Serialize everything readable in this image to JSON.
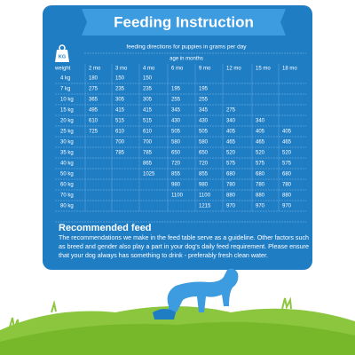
{
  "header": {
    "title": "Feeding Instruction",
    "subtitle": "feeding directions for puppies in grams per day",
    "age_label": "age in months",
    "icon_label": "KG"
  },
  "table": {
    "columns": [
      "weight",
      "2 mo",
      "3 mo",
      "4 mo",
      "6 mo",
      "9 mo",
      "12 mo",
      "15 mo",
      "18 mo"
    ],
    "rows": [
      [
        "4 kg",
        "180",
        "150",
        "150",
        null,
        null,
        null,
        null,
        null
      ],
      [
        "7 kg",
        "275",
        "235",
        "235",
        "195",
        "195",
        null,
        null,
        null
      ],
      [
        "10 kg",
        "365",
        "305",
        "305",
        "255",
        "255",
        null,
        null,
        null
      ],
      [
        "15 kg",
        "495",
        "415",
        "415",
        "345",
        "345",
        "275",
        null,
        null
      ],
      [
        "20 kg",
        "610",
        "515",
        "515",
        "430",
        "430",
        "340",
        "340",
        null
      ],
      [
        "25 kg",
        "725",
        "610",
        "610",
        "505",
        "505",
        "405",
        "405",
        "405"
      ],
      [
        "30 kg",
        null,
        "700",
        "700",
        "580",
        "580",
        "465",
        "465",
        "465"
      ],
      [
        "35 kg",
        null,
        "785",
        "785",
        "650",
        "650",
        "520",
        "520",
        "520"
      ],
      [
        "40 kg",
        null,
        null,
        "865",
        "720",
        "720",
        "575",
        "575",
        "575"
      ],
      [
        "50 kg",
        null,
        null,
        "1025",
        "855",
        "855",
        "680",
        "680",
        "680"
      ],
      [
        "60 kg",
        null,
        null,
        null,
        "980",
        "980",
        "780",
        "780",
        "780"
      ],
      [
        "70 kg",
        null,
        null,
        null,
        "1100",
        "1100",
        "880",
        "880",
        "880"
      ],
      [
        "80 kg",
        null,
        null,
        null,
        null,
        "1215",
        "970",
        "970",
        "970"
      ]
    ]
  },
  "recommendation": {
    "title": "Recommended feed",
    "lines": [
      "The recommendations we make in the feed table serve as a guideline. Other factors such",
      "as breed and gender also play a part in your dog's daily feed requirement. Please ensure",
      "that your dog always has something to drink - preferably fresh clean water."
    ]
  }
}
